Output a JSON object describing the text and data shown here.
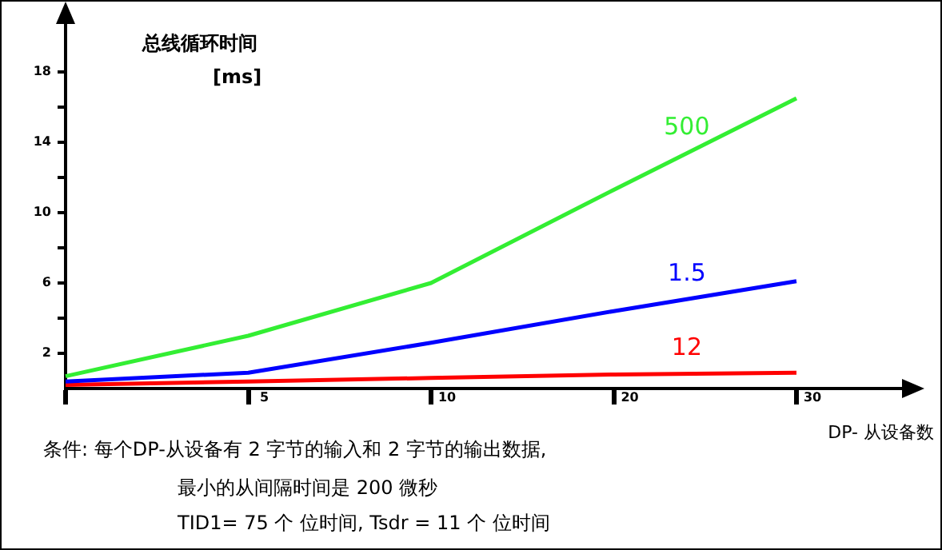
{
  "chart_data": {
    "type": "line",
    "title": "总线循环时间",
    "ylabel": "[ms]",
    "xlabel": "DP- 从设备数",
    "categories": [
      null,
      "5",
      "10",
      "20",
      "30"
    ],
    "series": [
      {
        "name": "500",
        "color": "#33ee33",
        "values": [
          0.7,
          3.0,
          6.0,
          11.3,
          16.5
        ]
      },
      {
        "name": "1.5",
        "color": "#0000ff",
        "values": [
          0.4,
          0.9,
          2.6,
          4.4,
          6.1
        ]
      },
      {
        "name": "12",
        "color": "#ff0000",
        "values": [
          0.2,
          0.4,
          0.6,
          0.8,
          0.9
        ]
      }
    ],
    "ylim": [
      0,
      21
    ],
    "yticks": [
      {
        "value": 2,
        "label": "2"
      },
      {
        "value": 4,
        "label": null
      },
      {
        "value": 6,
        "label": "6"
      },
      {
        "value": 8,
        "label": null
      },
      {
        "value": 10,
        "label": "10"
      },
      {
        "value": 12,
        "label": null
      },
      {
        "value": 14,
        "label": "14"
      },
      {
        "value": 16,
        "label": null
      },
      {
        "value": 18,
        "label": "18"
      }
    ],
    "grid": false,
    "legend": false,
    "marker": "none",
    "line_style": "solid",
    "annotations": [
      "条件: 每个DP-从设备有 2 字节的输入和 2 字节的输出数据,",
      "最小的从间隔时间是 200 微秒",
      "TID1= 75 个 位时间, Tsdr = 11 个 位时间"
    ]
  }
}
